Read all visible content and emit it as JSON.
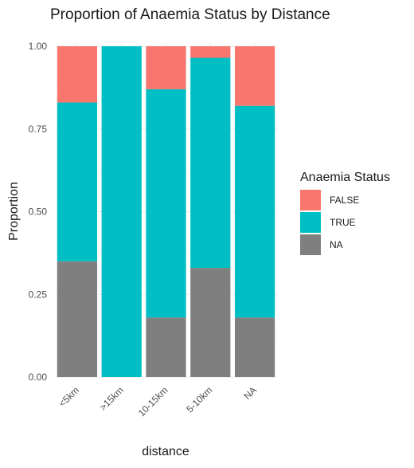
{
  "chart_data": {
    "type": "bar",
    "stacked": true,
    "title": "Proportion of Anaemia Status by Distance",
    "xlabel": "distance",
    "ylabel": "Proportion",
    "ylim": [
      0,
      1
    ],
    "y_ticks": [
      0,
      0.25,
      0.5,
      0.75,
      1
    ],
    "y_tick_labels": [
      "0.00",
      "0.25",
      "0.50",
      "0.75",
      "1.00"
    ],
    "categories": [
      "<5km",
      ">15km",
      "10-15km",
      "5-10km",
      "NA"
    ],
    "stack_order_bottom_to_top": [
      "NA",
      "TRUE",
      "FALSE"
    ],
    "series": [
      {
        "name": "NA",
        "color": "#7F7F7F",
        "values": [
          0.35,
          0.0,
          0.18,
          0.33,
          0.18
        ]
      },
      {
        "name": "TRUE",
        "color": "#00BFC4",
        "values": [
          0.48,
          1.0,
          0.69,
          0.635,
          0.64
        ]
      },
      {
        "name": "FALSE",
        "color": "#F8766D",
        "values": [
          0.17,
          0.0,
          0.13,
          0.035,
          0.18
        ]
      }
    ],
    "legend": {
      "title": "Anaemia Status",
      "placement": "right",
      "entries": [
        {
          "label": "FALSE",
          "color": "#F8766D"
        },
        {
          "label": "TRUE",
          "color": "#00BFC4"
        },
        {
          "label": "NA",
          "color": "#7F7F7F"
        }
      ]
    },
    "grid": true,
    "theme": "minimal"
  }
}
